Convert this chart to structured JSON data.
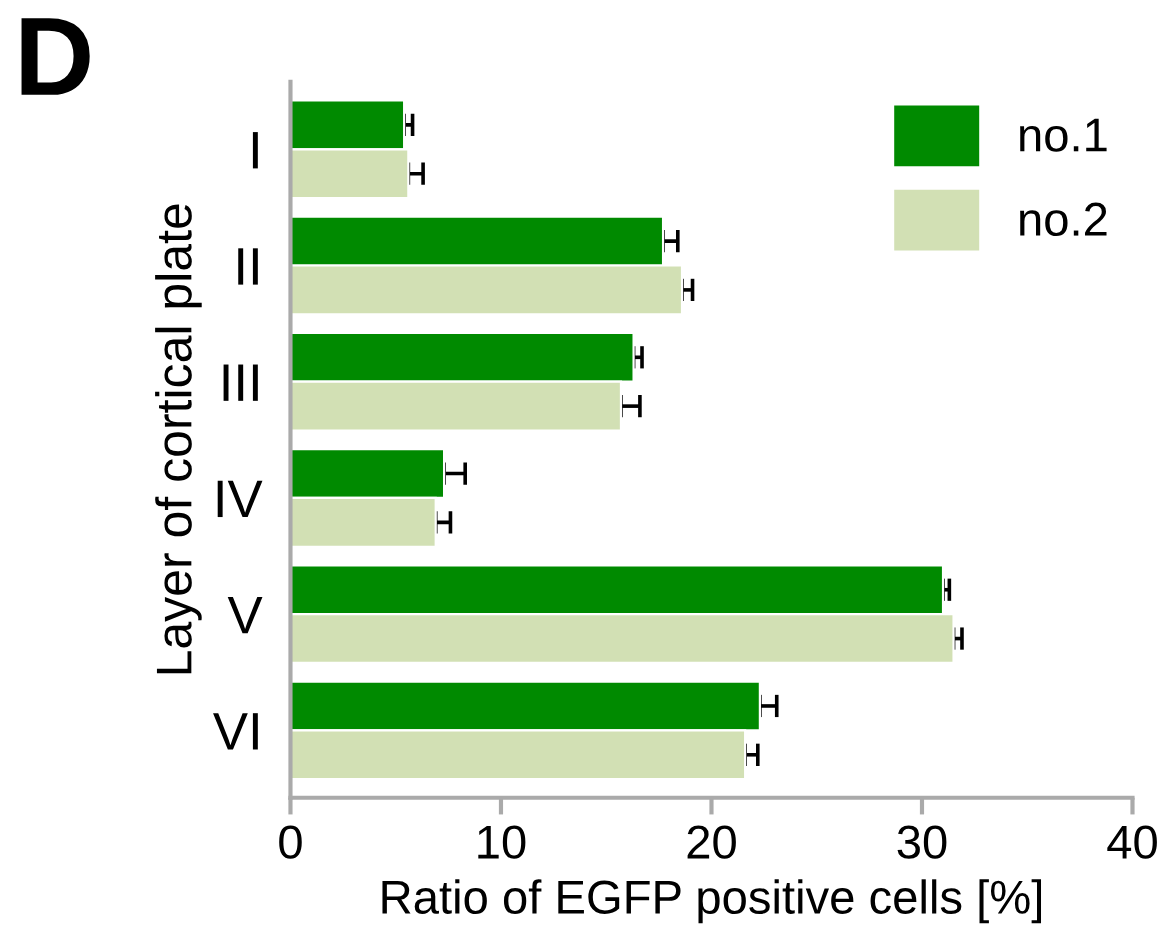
{
  "chart_data": {
    "type": "bar",
    "orientation": "horizontal",
    "title": "D",
    "xlabel": "Ratio of EGFP positive cells [%]",
    "ylabel": "Layer of cortical plate",
    "categories": [
      "I",
      "II",
      "III",
      "IV",
      "V",
      "VI"
    ],
    "series": [
      {
        "name": "no.1",
        "color": "#008a00",
        "values": [
          5.4,
          17.7,
          16.3,
          7.3,
          31.0,
          22.3
        ],
        "errors": [
          [
            5.4,
            5.8
          ],
          [
            17.7,
            18.4
          ],
          [
            16.3,
            16.7
          ],
          [
            7.3,
            8.3
          ],
          [
            31.0,
            31.3
          ],
          [
            22.3,
            23.1
          ]
        ]
      },
      {
        "name": "no.2",
        "color": "#d2e0b4",
        "values": [
          5.6,
          18.6,
          15.7,
          6.9,
          31.5,
          21.6
        ],
        "errors": [
          [
            5.6,
            6.3
          ],
          [
            18.6,
            19.1
          ],
          [
            15.7,
            16.6
          ],
          [
            6.9,
            7.6
          ],
          [
            31.5,
            31.9
          ],
          [
            21.6,
            22.2
          ]
        ]
      }
    ],
    "xlim": [
      0,
      40
    ],
    "xticks": [
      0,
      10,
      20,
      30,
      40
    ],
    "grid": false,
    "legend": "top right"
  }
}
